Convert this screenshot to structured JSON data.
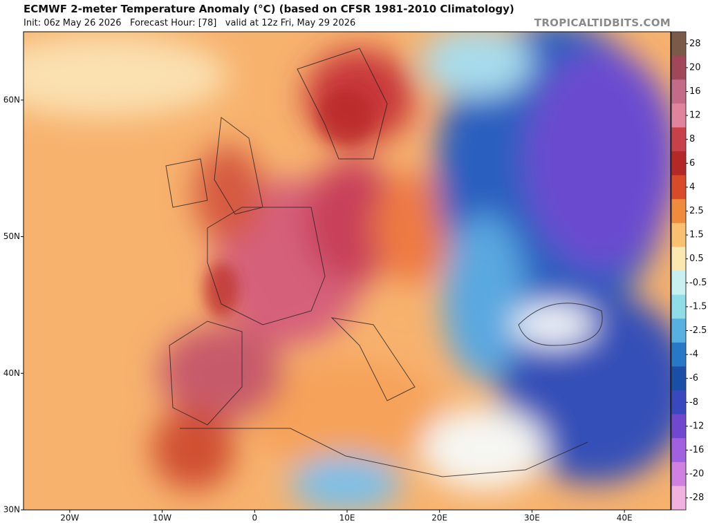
{
  "header": {
    "title": "ECMWF 2-meter Temperature Anomaly (°C) (based on CFSR 1981-2010 Climatology)",
    "subtitle": "Init: 06z May 26 2026   Forecast Hour: [78]   valid at 12z Fri, May 29 2026",
    "watermark": "TROPICALTIDBITS.COM"
  },
  "map": {
    "xlim": [
      -25,
      45
    ],
    "ylim": [
      30,
      65
    ],
    "lat_labels": [
      {
        "value": 60,
        "label": "60N"
      },
      {
        "value": 50,
        "label": "50N"
      },
      {
        "value": 40,
        "label": "40N"
      },
      {
        "value": 30,
        "label": "30N"
      }
    ],
    "lon_labels": [
      {
        "value": -20,
        "label": "20W"
      },
      {
        "value": -10,
        "label": "10W"
      },
      {
        "value": 0,
        "label": "0"
      },
      {
        "value": 10,
        "label": "10E"
      },
      {
        "value": 20,
        "label": "20E"
      },
      {
        "value": 30,
        "label": "30E"
      },
      {
        "value": 40,
        "label": "40E"
      }
    ]
  },
  "colorbar": {
    "labels": [
      28,
      20,
      16,
      12,
      8,
      6,
      4,
      2.5,
      1.5,
      0.5,
      -0.5,
      -1.5,
      -2.5,
      -4,
      -6,
      -8,
      -12,
      -16,
      -20,
      -28
    ],
    "colors": [
      "#7a5a48",
      "#a0485a",
      "#c46b8a",
      "#e0849e",
      "#c8404a",
      "#b52828",
      "#d84a2a",
      "#f08a3c",
      "#f8c070",
      "#fbe8b0",
      "#c8f0f0",
      "#90dce8",
      "#58b0e0",
      "#2878c8",
      "#1a4fa8",
      "#3a48c0",
      "#7048d0",
      "#a060e0",
      "#d080e0",
      "#f0b0e0"
    ]
  }
}
